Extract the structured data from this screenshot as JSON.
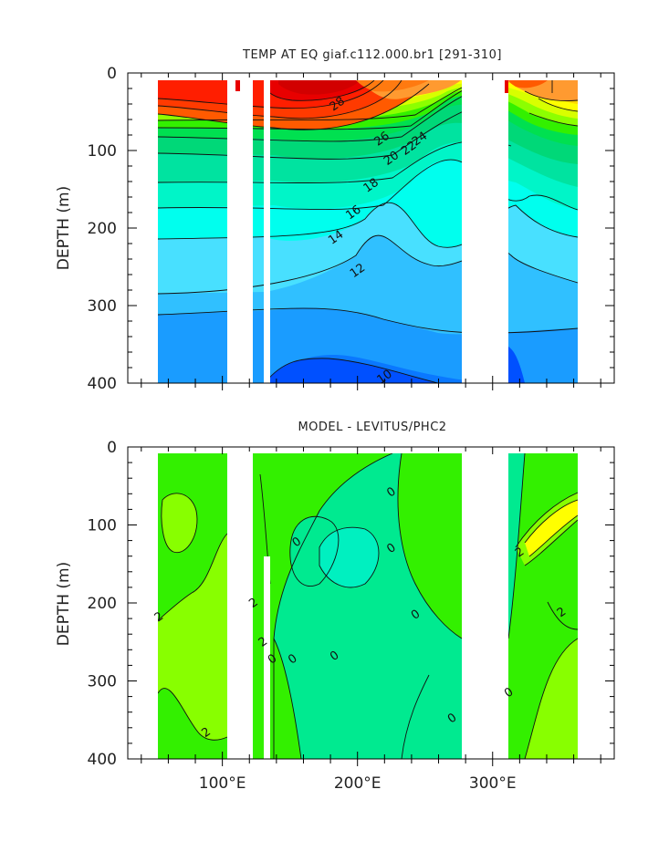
{
  "chart_data": [
    {
      "type": "heatmap",
      "title": "TEMP AT EQ giaf.c112.000.br1 [291-310]",
      "xlabel": "",
      "ylabel": "DEPTH (m)",
      "xlim": [
        30,
        390
      ],
      "ylim": [
        400,
        0
      ],
      "x_ticks": [
        "100°E",
        "200°E",
        "300°E"
      ],
      "x_tick_values": [
        100,
        200,
        300
      ],
      "y_ticks": [
        "0",
        "100",
        "200",
        "300",
        "400"
      ],
      "y_tick_values": [
        0,
        100,
        200,
        300,
        400
      ],
      "x_data_range": [
        42,
        370
      ],
      "y_data_range": [
        8,
        400
      ],
      "land_gaps_deg_e": [
        [
          98,
          118
        ],
        [
          126,
          130
        ],
        [
          278,
          315
        ]
      ],
      "contour_labels": [
        {
          "text": "28",
          "x": 185,
          "y": 40
        },
        {
          "text": "26",
          "x": 218,
          "y": 85
        },
        {
          "text": "24",
          "x": 246,
          "y": 85
        },
        {
          "text": "22",
          "x": 238,
          "y": 97
        },
        {
          "text": "20",
          "x": 225,
          "y": 110
        },
        {
          "text": "18",
          "x": 210,
          "y": 145
        },
        {
          "text": "16",
          "x": 197,
          "y": 180
        },
        {
          "text": "14",
          "x": 184,
          "y": 212
        },
        {
          "text": "12",
          "x": 200,
          "y": 255
        },
        {
          "text": "10",
          "x": 220,
          "y": 392
        }
      ],
      "colors": {
        "scale": [
          "#0050ff",
          "#0a78ff",
          "#1a9cff",
          "#30c0ff",
          "#48e0ff",
          "#00ffee",
          "#00f5c8",
          "#00e3a0",
          "#00d878",
          "#00e050",
          "#33f000",
          "#8cff00",
          "#d8ff00",
          "#ffff00",
          "#ffd800",
          "#ffb030",
          "#ff9a30",
          "#ff7a10",
          "#ff5a00",
          "#ff3a00",
          "#ff1e00",
          "#e80000",
          "#d20000"
        ]
      }
    },
    {
      "type": "heatmap",
      "title": "MODEL - LEVITUS/PHC2",
      "xlabel": "",
      "ylabel": "DEPTH (m)",
      "xlim": [
        30,
        390
      ],
      "ylim": [
        400,
        0
      ],
      "x_ticks": [
        "100°E",
        "200°E",
        "300°E"
      ],
      "x_tick_values": [
        100,
        200,
        300
      ],
      "y_ticks": [
        "0",
        "100",
        "200",
        "300",
        "400"
      ],
      "y_tick_values": [
        0,
        100,
        200,
        300,
        400
      ],
      "x_data_range": [
        42,
        370
      ],
      "y_data_range": [
        8,
        400
      ],
      "land_gaps_deg_e": [
        [
          98,
          118
        ],
        [
          126,
          130
        ],
        [
          278,
          315
        ]
      ],
      "contour_labels": [
        {
          "text": "0",
          "x": 225,
          "y": 58
        },
        {
          "text": "0",
          "x": 155,
          "y": 122
        },
        {
          "text": "0",
          "x": 225,
          "y": 130
        },
        {
          "text": "0",
          "x": 243,
          "y": 215
        },
        {
          "text": "0",
          "x": 183,
          "y": 268
        },
        {
          "text": "0",
          "x": 152,
          "y": 272
        },
        {
          "text": "0",
          "x": 137,
          "y": 272
        },
        {
          "text": "0",
          "x": 270,
          "y": 348
        },
        {
          "text": "0",
          "x": 312,
          "y": 315
        },
        {
          "text": "2",
          "x": 53,
          "y": 218
        },
        {
          "text": "2",
          "x": 88,
          "y": 366
        },
        {
          "text": "2",
          "x": 351,
          "y": 212
        },
        {
          "text": "2",
          "x": 320,
          "y": 135
        },
        {
          "text": "2",
          "x": 123,
          "y": 200
        },
        {
          "text": "2",
          "x": 130,
          "y": 250
        }
      ],
      "colors": {
        "scale": [
          "#00f0c0",
          "#00ea90",
          "#33f000",
          "#88ff00",
          "#ccff00",
          "#ffff00"
        ]
      }
    }
  ]
}
